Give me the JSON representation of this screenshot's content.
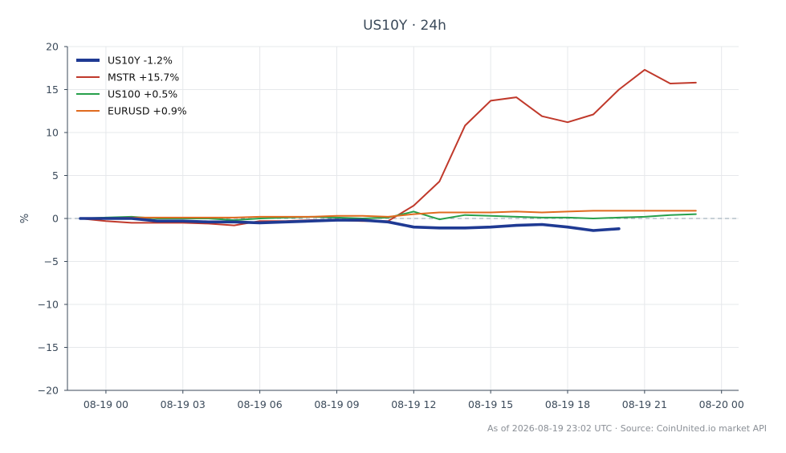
{
  "chart_data": {
    "type": "line",
    "title": "US10Y · 24h",
    "ylabel": "%",
    "xlabel": "",
    "ylim": [
      -20,
      20
    ],
    "yticks": [
      -20,
      -15,
      -10,
      -5,
      0,
      5,
      10,
      15,
      20
    ],
    "ytick_labels": [
      "−20",
      "−15",
      "−10",
      "−5",
      "0",
      "5",
      "10",
      "15",
      "20"
    ],
    "xlim": [
      "2026-08-18 22:30",
      "2026-08-20 00:40"
    ],
    "xticks": [
      "2026-08-19 00:00",
      "2026-08-19 03:00",
      "2026-08-19 06:00",
      "2026-08-19 09:00",
      "2026-08-19 12:00",
      "2026-08-19 15:00",
      "2026-08-19 18:00",
      "2026-08-19 21:00",
      "2026-08-20 00:00"
    ],
    "xtick_labels": [
      "08-19 00",
      "08-19 03",
      "08-19 06",
      "08-19 09",
      "08-19 12",
      "08-19 15",
      "08-19 18",
      "08-19 21",
      "08-20 00"
    ],
    "grid": true,
    "zero_line": true,
    "legend_position": "top-left",
    "series": [
      {
        "name": "US10Y -1.2%",
        "color": "#1f3a93",
        "emphasis": true,
        "x": [
          "2026-08-18 23:00",
          "2026-08-19 00:00",
          "2026-08-19 01:00",
          "2026-08-19 02:00",
          "2026-08-19 03:00",
          "2026-08-19 04:00",
          "2026-08-19 05:00",
          "2026-08-19 06:00",
          "2026-08-19 07:00",
          "2026-08-19 08:00",
          "2026-08-19 09:00",
          "2026-08-19 10:00",
          "2026-08-19 11:00",
          "2026-08-19 12:00",
          "2026-08-19 13:00",
          "2026-08-19 14:00",
          "2026-08-19 15:00",
          "2026-08-19 16:00",
          "2026-08-19 17:00",
          "2026-08-19 18:00",
          "2026-08-19 19:00",
          "2026-08-19 20:00"
        ],
        "y": [
          0,
          0,
          0,
          -0.3,
          -0.3,
          -0.4,
          -0.4,
          -0.5,
          -0.4,
          -0.3,
          -0.2,
          -0.2,
          -0.4,
          -1.0,
          -1.1,
          -1.1,
          -1.0,
          -0.8,
          -0.7,
          -1.0,
          -1.4,
          -1.2
        ]
      },
      {
        "name": "MSTR +15.7%",
        "color": "#c0392b",
        "x": [
          "2026-08-18 23:00",
          "2026-08-19 00:00",
          "2026-08-19 01:00",
          "2026-08-19 02:00",
          "2026-08-19 03:00",
          "2026-08-19 04:00",
          "2026-08-19 05:00",
          "2026-08-19 06:00",
          "2026-08-19 07:00",
          "2026-08-19 08:00",
          "2026-08-19 09:00",
          "2026-08-19 10:00",
          "2026-08-19 11:00",
          "2026-08-19 12:00",
          "2026-08-19 13:00",
          "2026-08-19 14:00",
          "2026-08-19 15:00",
          "2026-08-19 16:00",
          "2026-08-19 17:00",
          "2026-08-19 18:00",
          "2026-08-19 19:00",
          "2026-08-19 20:00",
          "2026-08-19 21:00",
          "2026-08-19 22:00",
          "2026-08-19 23:00"
        ],
        "y": [
          0,
          -0.3,
          -0.5,
          -0.5,
          -0.5,
          -0.6,
          -0.8,
          -0.3,
          -0.3,
          -0.2,
          -0.2,
          -0.3,
          -0.3,
          1.5,
          4.3,
          10.8,
          13.7,
          14.1,
          11.9,
          11.2,
          12.1,
          15.0,
          17.3,
          15.7,
          15.8
        ]
      },
      {
        "name": "US100 +0.5%",
        "color": "#27a04b",
        "x": [
          "2026-08-18 23:00",
          "2026-08-19 00:00",
          "2026-08-19 01:00",
          "2026-08-19 02:00",
          "2026-08-19 03:00",
          "2026-08-19 04:00",
          "2026-08-19 05:00",
          "2026-08-19 06:00",
          "2026-08-19 07:00",
          "2026-08-19 08:00",
          "2026-08-19 09:00",
          "2026-08-19 10:00",
          "2026-08-19 11:00",
          "2026-08-19 12:00",
          "2026-08-19 13:00",
          "2026-08-19 14:00",
          "2026-08-19 15:00",
          "2026-08-19 16:00",
          "2026-08-19 17:00",
          "2026-08-19 18:00",
          "2026-08-19 19:00",
          "2026-08-19 20:00",
          "2026-08-19 21:00",
          "2026-08-19 22:00",
          "2026-08-19 23:00"
        ],
        "y": [
          0,
          0.1,
          0.2,
          0.0,
          0.0,
          0.0,
          -0.2,
          0.0,
          0.1,
          0.2,
          0.1,
          0.0,
          0.1,
          0.8,
          -0.1,
          0.4,
          0.3,
          0.2,
          0.1,
          0.1,
          0.0,
          0.1,
          0.2,
          0.4,
          0.5
        ]
      },
      {
        "name": "EURUSD +0.9%",
        "color": "#e06b1f",
        "x": [
          "2026-08-18 23:00",
          "2026-08-19 00:00",
          "2026-08-19 01:00",
          "2026-08-19 02:00",
          "2026-08-19 03:00",
          "2026-08-19 04:00",
          "2026-08-19 05:00",
          "2026-08-19 06:00",
          "2026-08-19 07:00",
          "2026-08-19 08:00",
          "2026-08-19 09:00",
          "2026-08-19 10:00",
          "2026-08-19 11:00",
          "2026-08-19 12:00",
          "2026-08-19 13:00",
          "2026-08-19 14:00",
          "2026-08-19 15:00",
          "2026-08-19 16:00",
          "2026-08-19 17:00",
          "2026-08-19 18:00",
          "2026-08-19 19:00",
          "2026-08-19 20:00",
          "2026-08-19 21:00",
          "2026-08-19 22:00",
          "2026-08-19 23:00"
        ],
        "y": [
          0,
          0.0,
          0.1,
          0.1,
          0.1,
          0.1,
          0.1,
          0.2,
          0.2,
          0.2,
          0.3,
          0.3,
          0.2,
          0.5,
          0.7,
          0.7,
          0.7,
          0.8,
          0.7,
          0.8,
          0.9,
          0.9,
          0.9,
          0.9,
          0.9
        ]
      }
    ]
  },
  "footer": "As of 2026-08-19 23:02 UTC · Source: CoinUnited.io market API"
}
